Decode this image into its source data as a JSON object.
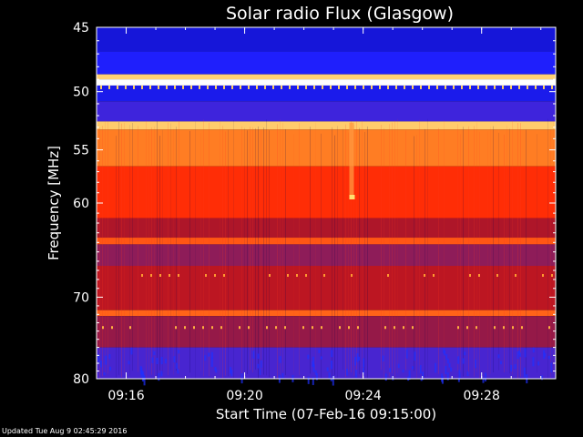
{
  "chart_data": {
    "type": "heatmap",
    "title": "Solar radio Flux (Glasgow)",
    "xlabel": "Start Time (07-Feb-16 09:15:00)",
    "ylabel": "Frequency [MHz]",
    "x_range": [
      "09:15:00",
      "09:30:30"
    ],
    "x_ticks": [
      "09:16",
      "09:20",
      "09:24",
      "09:28"
    ],
    "y_range": [
      45,
      80
    ],
    "y_ticks": [
      45,
      50,
      55,
      60,
      70,
      80
    ],
    "y_scale": "log",
    "colormap": [
      "#000080",
      "#2020ff",
      "#6a2aa8",
      "#a01530",
      "#ff1a00",
      "#ff7a20",
      "#ffd070",
      "#ffffff"
    ],
    "intensity_profile": [
      {
        "freq_from": 45.0,
        "freq_to": 46.8,
        "level": 0.1
      },
      {
        "freq_from": 46.8,
        "freq_to": 48.6,
        "level": 0.14
      },
      {
        "freq_from": 48.6,
        "freq_to": 49.0,
        "level": 0.86
      },
      {
        "freq_from": 49.0,
        "freq_to": 49.5,
        "level": 1.0
      },
      {
        "freq_from": 49.5,
        "freq_to": 50.8,
        "level": 0.12
      },
      {
        "freq_from": 50.8,
        "freq_to": 52.5,
        "level": 0.2
      },
      {
        "freq_from": 52.5,
        "freq_to": 53.2,
        "level": 0.85
      },
      {
        "freq_from": 53.2,
        "freq_to": 56.5,
        "level": 0.72
      },
      {
        "freq_from": 56.5,
        "freq_to": 61.5,
        "level": 0.6
      },
      {
        "freq_from": 61.5,
        "freq_to": 63.5,
        "level": 0.45
      },
      {
        "freq_from": 63.5,
        "freq_to": 64.2,
        "level": 0.66
      },
      {
        "freq_from": 64.2,
        "freq_to": 66.5,
        "level": 0.38
      },
      {
        "freq_from": 66.5,
        "freq_to": 71.5,
        "level": 0.47
      },
      {
        "freq_from": 71.5,
        "freq_to": 72.2,
        "level": 0.68
      },
      {
        "freq_from": 72.2,
        "freq_to": 76.0,
        "level": 0.4
      },
      {
        "freq_from": 76.0,
        "freq_to": 80.0,
        "level": 0.22
      }
    ],
    "grid": false
  },
  "footer": "Updated Tue Aug  9 02:45:29 2016",
  "colors": {
    "background": "#000000",
    "text": "#ffffff"
  }
}
